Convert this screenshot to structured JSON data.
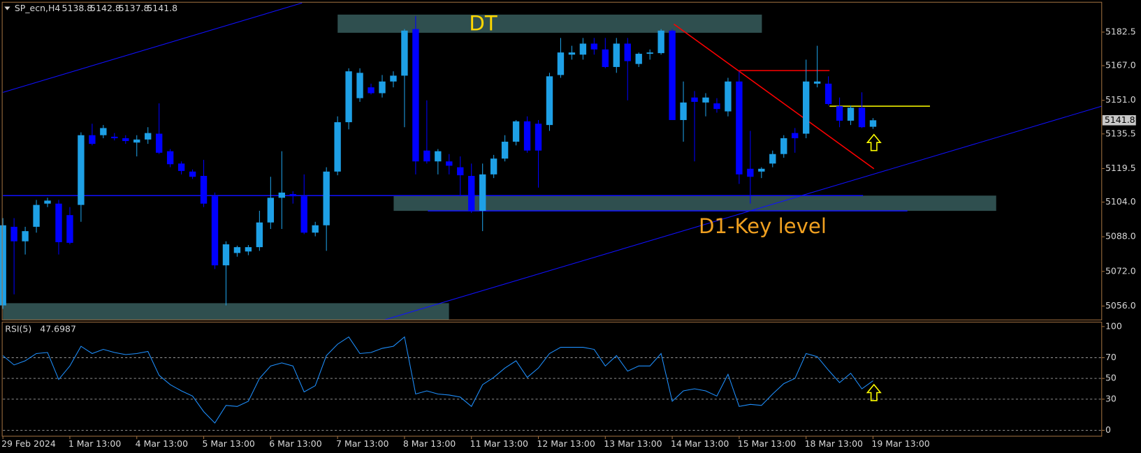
{
  "chart_data": [
    {
      "type": "candlestick",
      "symbol": "SP_ecn,H4",
      "header_ohlc": [
        5138.8,
        5142.8,
        5137.8,
        5141.8
      ],
      "last_price": 5141.8,
      "annotations": [
        "DT",
        "D1-Key level"
      ],
      "categories": [
        "29 Feb 2024",
        null,
        null,
        null,
        null,
        null,
        "1 Mar 13:00",
        null,
        null,
        null,
        null,
        null,
        "4 Mar 13:00",
        null,
        null,
        null,
        null,
        null,
        "5 Mar 13:00",
        null,
        null,
        null,
        null,
        null,
        "6 Mar 13:00",
        null,
        null,
        null,
        null,
        null,
        "7 Mar 13:00",
        null,
        null,
        null,
        null,
        null,
        "8 Mar 13:00",
        null,
        null,
        null,
        null,
        null,
        "11 Mar 13:00",
        null,
        null,
        null,
        null,
        null,
        "12 Mar 13:00",
        null,
        null,
        null,
        null,
        null,
        "13 Mar 13:00",
        null,
        null,
        null,
        null,
        null,
        "14 Mar 13:00",
        null,
        null,
        null,
        null,
        null,
        "15 Mar 13:00",
        null,
        null,
        null,
        null,
        null,
        "18 Mar 13:00",
        null,
        null,
        null,
        null,
        null,
        "19 Mar 13:00"
      ],
      "open": [
        5056.3,
        5092.6,
        5085.9,
        5092.6,
        5103.3,
        5103.3,
        5098.0,
        5102.7,
        5134.9,
        5134.9,
        5134.2,
        5133.5,
        5131.5,
        5132.9,
        5135.6,
        5127.5,
        5121.8,
        5118.1,
        5116.1,
        5106.7,
        5074.8,
        5080.5,
        5081.2,
        5083.2,
        5094.6,
        5106.0,
        5107.7,
        5106.7,
        5089.9,
        5093.3,
        5118.1,
        5140.9,
        5152.0,
        5157.0,
        5154.3,
        5159.7,
        5162.4,
        5183.9,
        5127.8,
        5122.8,
        5122.8,
        5120.1,
        5116.1,
        5100.0,
        5116.8,
        5124.1,
        5131.9,
        5141.3,
        5140.2,
        5139.6,
        5162.7,
        5172.1,
        5172.1,
        5177.2,
        5174.5,
        5166.4,
        5177.2,
        5167.8,
        5172.5,
        5172.8,
        5183.2,
        5141.9,
        5152.3,
        5150.0,
        5149.6,
        5145.9,
        5159.7,
        5119.4,
        5118.1,
        5121.8,
        5126.2,
        5135.9,
        5135.6,
        5158.7,
        5158.7,
        5148.3,
        5141.6,
        5147.6,
        5138.8
      ],
      "high": [
        5096.6,
        5096.6,
        5092.6,
        5105.0,
        5106.0,
        5105.0,
        5101.7,
        5136.2,
        5140.2,
        5139.6,
        5135.9,
        5134.9,
        5134.9,
        5138.6,
        5149.6,
        5128.5,
        5122.8,
        5119.1,
        5123.5,
        5108.4,
        5085.9,
        5083.9,
        5084.2,
        5100.0,
        5115.7,
        5127.5,
        5109.0,
        5116.8,
        5094.9,
        5120.1,
        5143.6,
        5165.8,
        5165.8,
        5158.7,
        5162.7,
        5164.4,
        5183.9,
        5189.9,
        5151.0,
        5128.5,
        5126.2,
        5125.1,
        5121.8,
        5121.8,
        5125.8,
        5134.9,
        5141.9,
        5143.6,
        5141.9,
        5163.7,
        5179.8,
        5176.2,
        5179.8,
        5179.8,
        5179.8,
        5179.8,
        5179.8,
        5173.1,
        5174.5,
        5183.9,
        5183.9,
        5159.7,
        5155.3,
        5154.3,
        5152.0,
        5161.4,
        5164.4,
        5136.9,
        5120.1,
        5127.8,
        5134.9,
        5138.2,
        5169.8,
        5176.2,
        5162.1,
        5152.3,
        5148.6,
        5154.7,
        5142.8
      ],
      "low": [
        5054.7,
        5061.4,
        5079.8,
        5089.9,
        5101.7,
        5079.8,
        5084.5,
        5094.9,
        5130.2,
        5133.5,
        5132.5,
        5130.9,
        5125.1,
        5130.9,
        5126.2,
        5120.1,
        5116.8,
        5114.7,
        5101.7,
        5073.1,
        5056.3,
        5078.8,
        5079.5,
        5081.5,
        5091.6,
        5091.6,
        5103.3,
        5089.2,
        5088.2,
        5081.5,
        5116.4,
        5137.6,
        5150.3,
        5153.7,
        5152.3,
        5157.0,
        5138.6,
        5116.8,
        5121.8,
        5116.8,
        5116.8,
        5106.7,
        5099.0,
        5090.6,
        5115.1,
        5122.8,
        5130.2,
        5126.8,
        5110.7,
        5136.9,
        5161.4,
        5169.8,
        5169.8,
        5172.1,
        5165.8,
        5163.7,
        5151.0,
        5166.4,
        5169.8,
        5172.1,
        5141.9,
        5131.9,
        5122.8,
        5143.6,
        5145.3,
        5143.6,
        5112.4,
        5103.3,
        5115.1,
        5120.1,
        5124.5,
        5126.8,
        5133.5,
        5157.0,
        5148.6,
        5138.6,
        5139.6,
        5138.2,
        5137.8
      ],
      "close": [
        5093.3,
        5085.9,
        5090.6,
        5102.7,
        5104.7,
        5085.5,
        5085.2,
        5134.9,
        5130.9,
        5138.2,
        5133.5,
        5132.2,
        5132.9,
        5135.9,
        5126.8,
        5121.5,
        5118.4,
        5115.7,
        5103.3,
        5074.8,
        5084.5,
        5083.2,
        5083.2,
        5094.6,
        5106.0,
        5108.4,
        5106.7,
        5089.9,
        5093.3,
        5118.1,
        5140.9,
        5164.4,
        5163.7,
        5154.3,
        5159.7,
        5162.4,
        5183.2,
        5122.8,
        5122.8,
        5127.5,
        5120.8,
        5116.4,
        5100.0,
        5116.8,
        5124.1,
        5131.9,
        5141.3,
        5127.8,
        5127.8,
        5162.1,
        5173.1,
        5173.1,
        5177.2,
        5174.5,
        5166.4,
        5177.2,
        5169.1,
        5172.5,
        5173.1,
        5183.2,
        5141.9,
        5150.0,
        5150.3,
        5152.3,
        5147.0,
        5159.7,
        5116.8,
        5115.7,
        5119.4,
        5126.2,
        5133.5,
        5133.5,
        5159.7,
        5159.7,
        5149.3,
        5141.6,
        5147.6,
        5138.6,
        5141.8
      ],
      "up_color": "#1ea0e6",
      "down_color": "#0000ff",
      "ylim": [
        5049.6,
        5196.3
      ],
      "yticks": [
        5182.5,
        {
          "value": 5167.0,
          "label": "5167.0"
        },
        {
          "value": 5151.0,
          "label": "5151.0"
        },
        5135.5,
        5119.5,
        {
          "value": 5104.0,
          "label": "5104.0"
        },
        {
          "value": 5088.0,
          "label": "5088.0"
        },
        {
          "value": 5072.0,
          "label": "5072.0"
        },
        {
          "value": 5056.0,
          "label": "5056.0"
        }
      ]
    },
    {
      "type": "line",
      "series": [
        {
          "name": "RSI(5)",
          "color": "#1e90ff",
          "values": [
            72,
            63,
            67,
            74,
            75,
            49,
            62,
            81,
            74,
            78,
            75,
            73,
            74,
            76,
            53,
            44,
            38,
            33,
            18,
            7,
            24,
            23,
            28,
            50,
            62,
            65,
            62,
            37,
            43,
            72,
            83,
            90,
            74,
            75,
            79,
            81,
            90,
            35,
            38,
            35,
            34,
            32,
            23,
            44,
            51,
            60,
            67,
            51,
            60,
            74,
            80,
            80,
            80,
            78,
            62,
            72,
            57,
            62,
            62,
            74,
            28,
            38,
            40,
            38,
            33,
            54,
            23,
            25,
            24,
            35,
            45,
            50,
            74,
            71,
            58,
            46,
            55,
            40,
            47.6987
          ]
        }
      ],
      "ylim": [
        -5.7,
        104.3
      ],
      "yticks": [
        0,
        30,
        50,
        70,
        100
      ]
    }
  ]
}
